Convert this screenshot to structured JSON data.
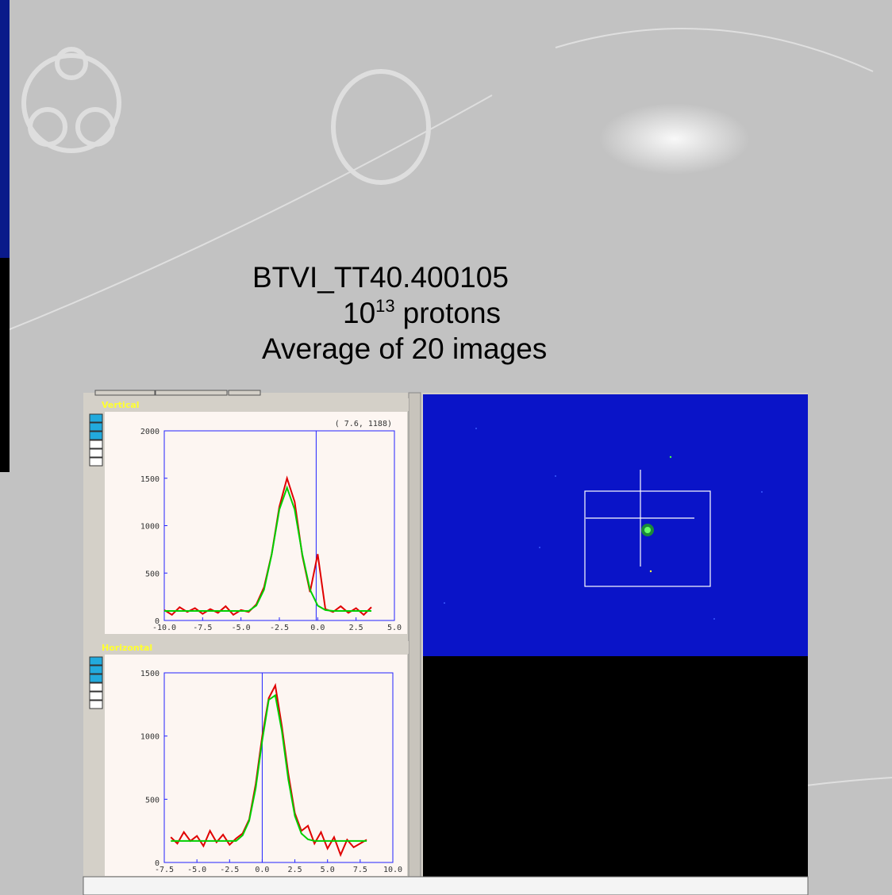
{
  "title_lines": {
    "line1": "BTVI_TT40.400105",
    "line2": {
      "base": "10",
      "exponent": "13",
      "text": "protons"
    },
    "line3": "Average of 20 images"
  },
  "plots": [
    {
      "title": "Vertical",
      "readout": "(  7.6,   1188)",
      "xlim": [
        -10,
        5
      ],
      "ylim": [
        0,
        2000
      ],
      "xticks": [
        {
          "value": -10,
          "label": "-10.0"
        },
        {
          "value": -7.5,
          "label": "-7.5"
        },
        {
          "value": -5,
          "label": "-5.0"
        },
        {
          "value": -2.5,
          "label": "-2.5"
        },
        {
          "value": 0,
          "label": "0.0"
        },
        {
          "value": 2.5,
          "label": "2.5"
        },
        {
          "value": 5,
          "label": "5.0"
        }
      ],
      "yticks": [
        0,
        500,
        1000,
        1500,
        2000
      ],
      "cursor_x": -0.1,
      "x": [
        -10,
        -9.5,
        -9,
        -8.5,
        -8,
        -7.5,
        -7,
        -6.5,
        -6,
        -5.5,
        -5,
        -4.5,
        -4,
        -3.5,
        -3,
        -2.5,
        -2,
        -1.5,
        -1,
        -0.5,
        0,
        0.5,
        1,
        1.5,
        2,
        2.5,
        3,
        3.5
      ],
      "measured": {
        "color": "#e00000",
        "values": [
          110,
          60,
          140,
          90,
          130,
          70,
          120,
          80,
          150,
          60,
          110,
          90,
          170,
          350,
          700,
          1200,
          1500,
          1250,
          680,
          300,
          700,
          120,
          90,
          150,
          80,
          130,
          60,
          140
        ]
      },
      "fit": {
        "color": "#00d000",
        "values": [
          100,
          100,
          100,
          100,
          100,
          100,
          100,
          100,
          100,
          100,
          100,
          100,
          157,
          324,
          695,
          1170,
          1400,
          1170,
          695,
          324,
          157,
          110,
          100,
          100,
          100,
          100,
          100,
          100
        ]
      }
    },
    {
      "title": "Horizontal",
      "xlim": [
        -7.5,
        10
      ],
      "ylim": [
        0,
        1500
      ],
      "xticks": [
        {
          "value": -7.5,
          "label": "-7.5"
        },
        {
          "value": -5,
          "label": "-5.0"
        },
        {
          "value": -2.5,
          "label": "-2.5"
        },
        {
          "value": 0,
          "label": "0.0"
        },
        {
          "value": 2.5,
          "label": "2.5"
        },
        {
          "value": 5,
          "label": "5.0"
        },
        {
          "value": 7.5,
          "label": "7.5"
        },
        {
          "value": 10,
          "label": "10.0"
        }
      ],
      "yticks": [
        0,
        500,
        1000,
        1500
      ],
      "cursor_x": 0,
      "x": [
        -7,
        -6.5,
        -6,
        -5.5,
        -5,
        -4.5,
        -4,
        -3.5,
        -3,
        -2.5,
        -2,
        -1.5,
        -1,
        -0.5,
        0,
        0.5,
        1,
        1.5,
        2,
        2.5,
        3,
        3.5,
        4,
        4.5,
        5,
        5.5,
        6,
        6.5,
        7,
        7.5,
        8
      ],
      "measured": {
        "color": "#e00000",
        "values": [
          200,
          150,
          240,
          170,
          210,
          130,
          250,
          160,
          220,
          140,
          190,
          230,
          340,
          620,
          1000,
          1300,
          1400,
          1080,
          700,
          390,
          250,
          290,
          150,
          240,
          110,
          200,
          60,
          180,
          120,
          150,
          180
        ]
      },
      "fit": {
        "color": "#00d000",
        "values": [
          170,
          170,
          170,
          170,
          170,
          170,
          170,
          170,
          170,
          170,
          170,
          215,
          329,
          587,
          965,
          1286,
          1322,
          1042,
          655,
          368,
          229,
          183,
          170,
          170,
          170,
          170,
          170,
          170,
          170,
          170,
          170
        ]
      }
    }
  ]
}
